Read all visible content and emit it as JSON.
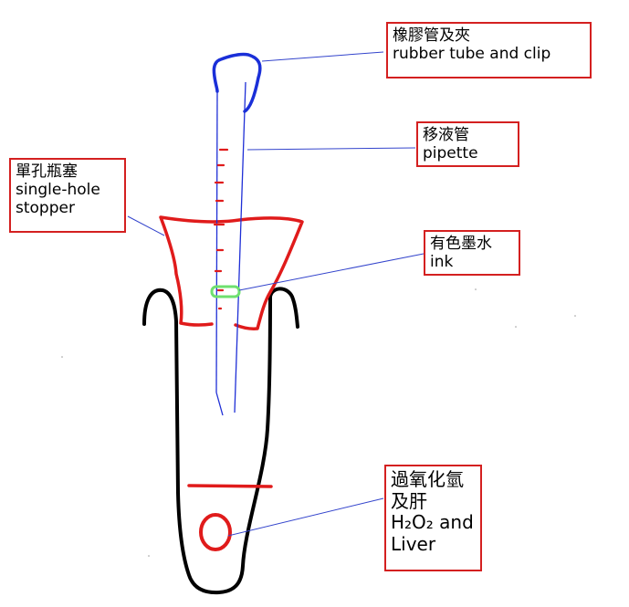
{
  "labels": {
    "rubber_tube": {
      "zh": "橡膠管及夾",
      "en": "rubber tube and clip"
    },
    "pipette": {
      "zh": "移液管",
      "en": "pipette"
    },
    "stopper": {
      "zh": "單孔瓶塞",
      "en1": "single-hole",
      "en2": "stopper"
    },
    "ink": {
      "zh": "有色墨水",
      "en": "ink"
    },
    "h2o2": {
      "zh1": "過氧化氫",
      "zh2": "及肝",
      "en1": "H₂O₂ and",
      "en2": "Liver"
    }
  },
  "colors": {
    "label_border": "#d42020",
    "tube_outline": "#000000",
    "stopper": "#e01b1b",
    "pipette": "#1f2fd6",
    "rubber_tube": "#1a2fd8",
    "ink": "#6ee06e",
    "leader_line": "#3344cc"
  }
}
